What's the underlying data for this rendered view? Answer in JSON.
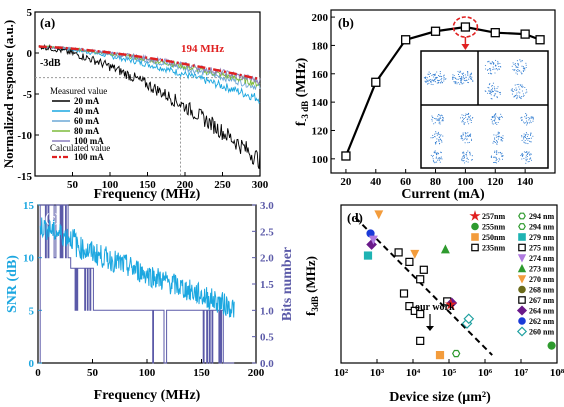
{
  "chart_data": [
    {
      "panel": "(a)",
      "type": "line",
      "xlabel": "Frequency (MHz)",
      "ylabel": "Normalized response (a.u.)",
      "xlim": [
        0,
        300
      ],
      "ylim": [
        -15,
        5
      ],
      "xticks": [
        50,
        100,
        150,
        200,
        250,
        300
      ],
      "yticks": [
        -15,
        -10,
        -5,
        0,
        5
      ],
      "annotations": {
        "bandwidth": "194 MHz",
        "threshold": "-3dB"
      },
      "legend_headers": {
        "measured": "Measured value",
        "calculated": "Calculated value"
      },
      "series": [
        {
          "name": "20 mA",
          "color": "#000000",
          "decay_at_300": -13.5,
          "noise": 0.9
        },
        {
          "name": "40 mA",
          "color": "#1ca7e0",
          "decay_at_300": -6.0,
          "noise": 0.45
        },
        {
          "name": "60 mA",
          "color": "#6da8d6",
          "decay_at_300": -4.6,
          "noise": 0.35
        },
        {
          "name": "80 mA",
          "color": "#7dbb3c",
          "decay_at_300": -4.2,
          "noise": 0.35
        },
        {
          "name": "100 mA",
          "color": "#8a7fbf",
          "decay_at_300": -3.8,
          "noise": 0.35
        },
        {
          "name": "100 mA",
          "color": "#e02020",
          "decay_at_300": -3.6,
          "noise": 0,
          "dashed": true
        }
      ],
      "markers": {
        "x_dotted": 194,
        "y_dotted": -3
      }
    },
    {
      "panel": "(b)",
      "type": "line",
      "xlabel": "Current (mA)",
      "ylabel": "f-3 dB (MHz)",
      "xlim": [
        10,
        160
      ],
      "ylim": [
        90,
        205
      ],
      "xticks": [
        20,
        40,
        60,
        80,
        100,
        120,
        140
      ],
      "yticks": [
        100,
        120,
        140,
        160,
        180,
        200
      ],
      "x": [
        20,
        40,
        60,
        80,
        100,
        120,
        140,
        150
      ],
      "y": [
        102,
        154,
        184,
        190,
        193,
        189,
        188,
        184
      ],
      "highlight_x": 100
    },
    {
      "panel": "(c)",
      "type": "line",
      "xlabel": "Frequency (MHz)",
      "ylabel": "SNR (dB)",
      "ylabel2": "Bits number",
      "xlim": [
        0,
        200
      ],
      "ylim": [
        0,
        15
      ],
      "ylim2": [
        0,
        3.0
      ],
      "xticks": [
        0,
        50,
        100,
        150,
        200
      ],
      "yticks": [
        0,
        5,
        10,
        15
      ],
      "yticks2": [
        "0.0",
        "0.5",
        "1.0",
        "1.5",
        "2.0",
        "2.5",
        "3.0"
      ],
      "series": [
        {
          "name": "SNR",
          "color": "#1ca7e0",
          "start": 12.5,
          "end": 5.2
        },
        {
          "name": "Bits",
          "color": "#5b5aa8",
          "steps": [
            [
              0,
              3.0
            ],
            [
              30,
              1.8
            ],
            [
              50,
              1.0
            ],
            [
              170,
              0.0
            ]
          ]
        }
      ]
    },
    {
      "panel": "(d)",
      "type": "scatter",
      "xlabel": "Device size (μm²)",
      "ylabel": "f3dB (MHz)",
      "xscale": "log",
      "xlim_exp": [
        2,
        8
      ],
      "xtick_labels": [
        "10²",
        "10³",
        "10⁴",
        "10⁵",
        "10⁶",
        "10⁷",
        "10⁸"
      ],
      "annotation": "our work",
      "legend": [
        {
          "label": "257nm",
          "color": "#e02020",
          "shape": "star"
        },
        {
          "label": "255nm",
          "color": "#2e9a2e",
          "shape": "circle"
        },
        {
          "label": "250nm",
          "color": "#f39c3c",
          "shape": "square"
        },
        {
          "label": "235nm",
          "color": "#000000",
          "shape": "square-open"
        },
        {
          "label": "294 nm",
          "color": "#2e9a2e",
          "shape": "hex-open"
        },
        {
          "label": "294 nm",
          "color": "#2e9a2e",
          "shape": "hex-open"
        },
        {
          "label": "279 nm",
          "color": "#1fb3b3",
          "shape": "square"
        },
        {
          "label": "275 nm",
          "color": "#000000",
          "shape": "square-open"
        },
        {
          "label": "274 nm",
          "color": "#b07ae0",
          "shape": "tri-down"
        },
        {
          "label": "273 nm",
          "color": "#2e9a2e",
          "shape": "tri-up"
        },
        {
          "label": "270 nm",
          "color": "#f39c3c",
          "shape": "tri-down"
        },
        {
          "label": "268 nm",
          "color": "#6b6b1a",
          "shape": "circle"
        },
        {
          "label": "267 nm",
          "color": "#000000",
          "shape": "square-open"
        },
        {
          "label": "264 nm",
          "color": "#6a1a8a",
          "shape": "diamond"
        },
        {
          "label": "262 nm",
          "color": "#1a3ad8",
          "shape": "circle"
        },
        {
          "label": "260 nm",
          "color": "#1fa0a0",
          "shape": "diamond-open"
        }
      ],
      "points": [
        {
          "x": 2.82,
          "y": 0.82,
          "color": "#1a3ad8",
          "shape": "circle"
        },
        {
          "x": 2.85,
          "y": 0.75,
          "color": "#6a1a8a",
          "shape": "diamond"
        },
        {
          "x": 2.9,
          "y": 0.78,
          "color": "#b07ae0",
          "shape": "tri-down"
        },
        {
          "x": 2.75,
          "y": 0.68,
          "color": "#1fb3b3",
          "shape": "square"
        },
        {
          "x": 3.05,
          "y": 0.94,
          "color": "#f39c3c",
          "shape": "tri-down"
        },
        {
          "x": 3.6,
          "y": 0.7,
          "color": "#000000",
          "shape": "square-open"
        },
        {
          "x": 4.05,
          "y": 0.69,
          "color": "#f39c3c",
          "shape": "tri-down"
        },
        {
          "x": 4.2,
          "y": 0.53,
          "color": "#000000",
          "shape": "square-open"
        },
        {
          "x": 3.9,
          "y": 0.64,
          "color": "#000000",
          "shape": "square-open"
        },
        {
          "x": 4.3,
          "y": 0.59,
          "color": "#000000",
          "shape": "square-open"
        },
        {
          "x": 4.9,
          "y": 0.72,
          "color": "#2e9a2e",
          "shape": "tri-up"
        },
        {
          "x": 3.75,
          "y": 0.44,
          "color": "#000000",
          "shape": "square-open"
        },
        {
          "x": 3.9,
          "y": 0.36,
          "color": "#000000",
          "shape": "square-open"
        },
        {
          "x": 4.05,
          "y": 0.33,
          "color": "#000000",
          "shape": "square-open"
        },
        {
          "x": 4.2,
          "y": 0.31,
          "color": "#000000",
          "shape": "square-open"
        },
        {
          "x": 4.2,
          "y": 0.14,
          "color": "#000000",
          "shape": "square-open"
        },
        {
          "x": 4.95,
          "y": 0.39,
          "color": "#000000",
          "shape": "square-open"
        },
        {
          "x": 5.08,
          "y": 0.38,
          "color": "#6a1a8a",
          "shape": "diamond"
        },
        {
          "x": 5.05,
          "y": 0.37,
          "color": "#e02020",
          "shape": "star"
        },
        {
          "x": 5.5,
          "y": 0.25,
          "color": "#1fa0a0",
          "shape": "diamond-open"
        },
        {
          "x": 5.55,
          "y": 0.28,
          "color": "#1fa0a0",
          "shape": "diamond-open"
        },
        {
          "x": 4.75,
          "y": 0.05,
          "color": "#f39c3c",
          "shape": "square"
        },
        {
          "x": 5.2,
          "y": 0.06,
          "color": "#2e9a2e",
          "shape": "hex-open"
        },
        {
          "x": 7.85,
          "y": 0.11,
          "color": "#2e9a2e",
          "shape": "circle"
        }
      ],
      "trend": {
        "from": [
          2.4,
          0.92
        ],
        "to": [
          6.2,
          0.05
        ]
      }
    }
  ]
}
